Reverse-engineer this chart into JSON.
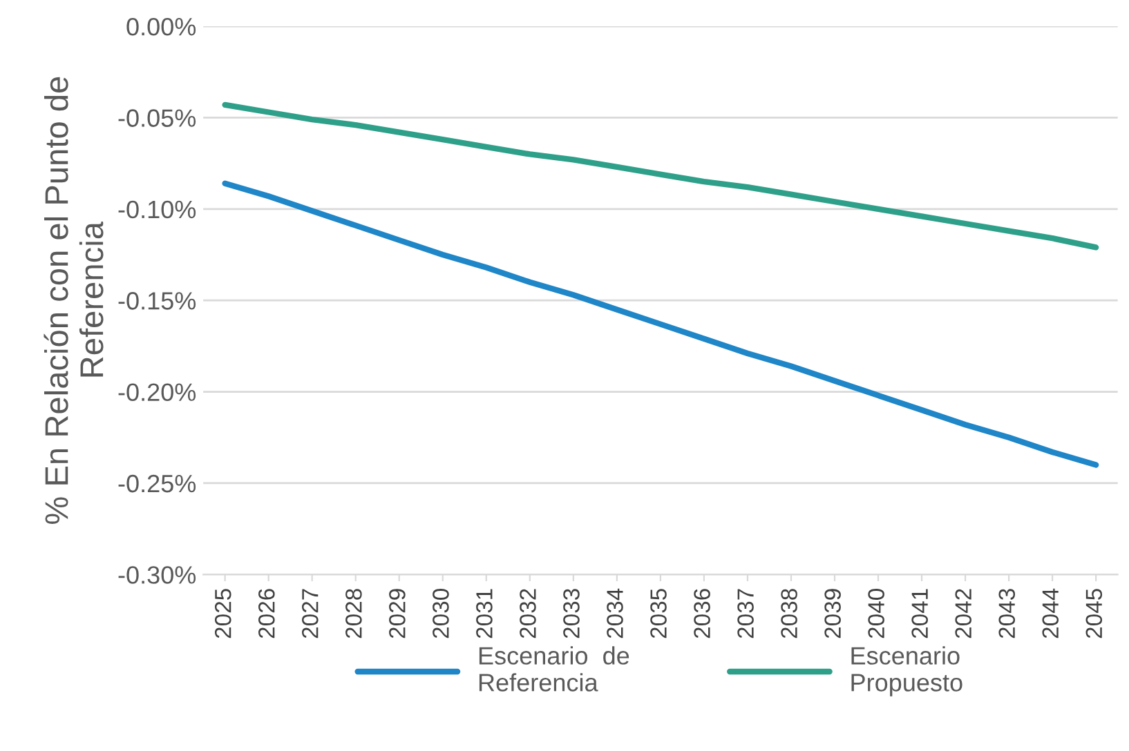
{
  "chart_data": {
    "type": "line",
    "ylabel": "% En Relación con el Punto de\nReferencia",
    "categories": [
      "2025",
      "2026",
      "2027",
      "2028",
      "2029",
      "2030",
      "2031",
      "2032",
      "2033",
      "2034",
      "2035",
      "2036",
      "2037",
      "2038",
      "2039",
      "2040",
      "2041",
      "2042",
      "2043",
      "2044",
      "2045"
    ],
    "series": [
      {
        "name": "Escenario  de\nReferencia",
        "color": "#1f86c8",
        "values": [
          -0.086,
          -0.093,
          -0.101,
          -0.109,
          -0.117,
          -0.125,
          -0.132,
          -0.14,
          -0.147,
          -0.155,
          -0.163,
          -0.171,
          -0.179,
          -0.186,
          -0.194,
          -0.202,
          -0.21,
          -0.218,
          -0.225,
          -0.233,
          -0.24
        ]
      },
      {
        "name": "Escenario\nPropuesto",
        "color": "#2ea08a",
        "values": [
          -0.043,
          -0.047,
          -0.051,
          -0.054,
          -0.058,
          -0.062,
          -0.066,
          -0.07,
          -0.073,
          -0.077,
          -0.081,
          -0.085,
          -0.088,
          -0.092,
          -0.096,
          -0.1,
          -0.104,
          -0.108,
          -0.112,
          -0.116,
          -0.121
        ]
      }
    ],
    "ylim": [
      -0.3,
      0.0
    ],
    "yticks": [
      {
        "value": -0.3,
        "label": "-0.30%"
      },
      {
        "value": -0.25,
        "label": "-0.25%"
      },
      {
        "value": -0.2,
        "label": "-0.20%"
      },
      {
        "value": -0.15,
        "label": "-0.15%"
      },
      {
        "value": -0.1,
        "label": "-0.10%"
      },
      {
        "value": -0.05,
        "label": "-0.05%"
      },
      {
        "value": 0.0,
        "label": "0.00%"
      }
    ],
    "grid": "y",
    "legend": "bottom",
    "marker": "none",
    "line_style": "solid"
  }
}
